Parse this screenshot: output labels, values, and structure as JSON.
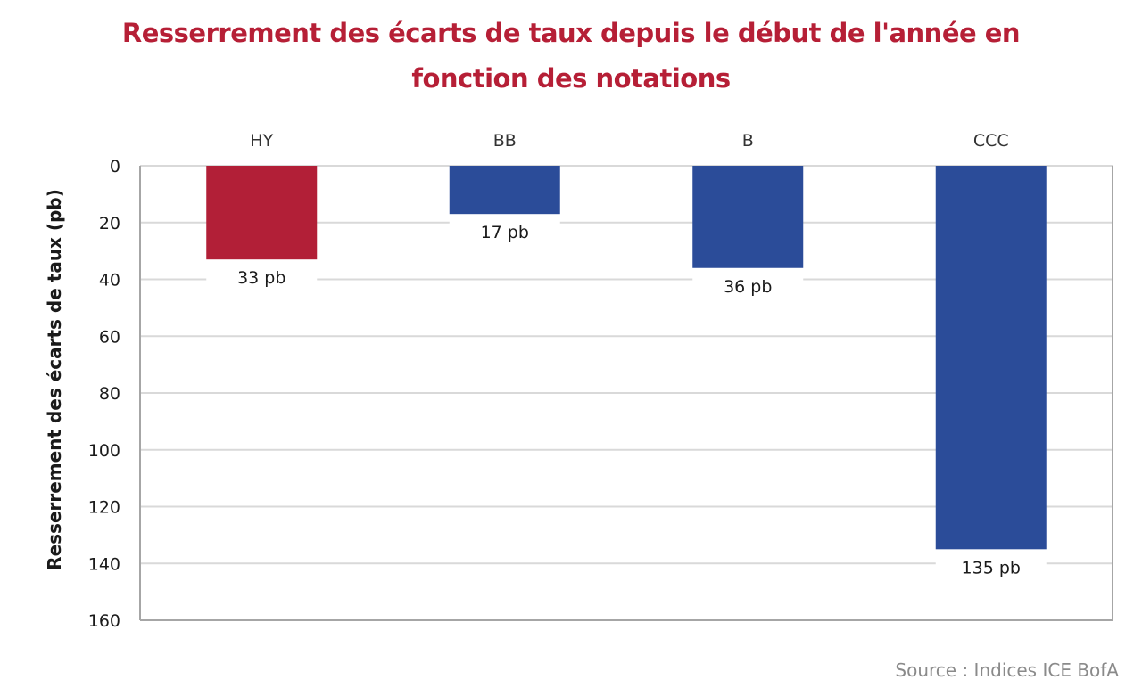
{
  "chart_data": {
    "type": "bar",
    "title": [
      "Resserrement des écarts de taux depuis le début de l'année en",
      "fonction des notations"
    ],
    "categories": [
      "HY",
      "BB",
      "B",
      "CCC"
    ],
    "values": [
      33,
      17,
      36,
      135
    ],
    "data_labels": [
      "33 pb",
      "17 pb",
      "36 pb",
      "135 pb"
    ],
    "bar_colors": [
      "#b21f37",
      "#2b4c99",
      "#2b4c99",
      "#2b4c99"
    ],
    "ylabel": "Resserrement des écarts de taux (pb)",
    "xlabel": "",
    "ylim": [
      0,
      160
    ],
    "y_inverted": true,
    "yticks": [
      0,
      20,
      40,
      60,
      80,
      100,
      120,
      140,
      160
    ],
    "x_axis_position": "top",
    "grid": true,
    "legend": "none",
    "source": "Source : Indices ICE BofA"
  },
  "colors": {
    "title": "#b61f36",
    "grid": "#d9d9d9",
    "axis": "#a6a6a6",
    "text": "#1a1a1a",
    "source": "#8a8a8a"
  }
}
